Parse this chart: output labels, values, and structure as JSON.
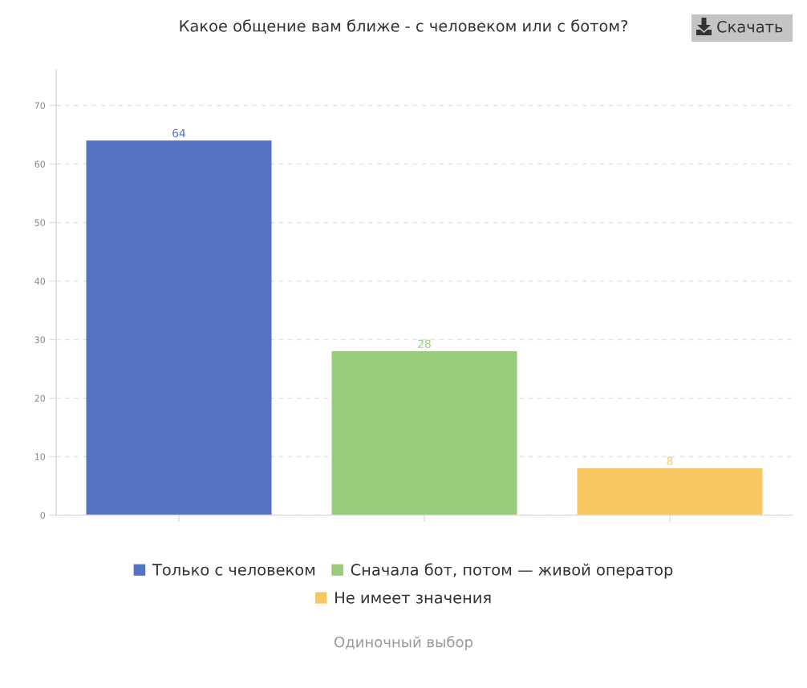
{
  "chart_data": {
    "type": "bar",
    "title": "Какое общение вам ближе - с человеком или с ботом?",
    "categories": [
      null,
      null,
      null
    ],
    "series": [
      {
        "name": "Только с человеком",
        "color": "#5573c3",
        "values": [
          64,
          null,
          null
        ]
      },
      {
        "name": "Сначала бот, потом — живой оператор",
        "color": "#97cc7a",
        "values": [
          null,
          28,
          null
        ]
      },
      {
        "name": "Не имеет значения",
        "color": "#f7c762",
        "values": [
          null,
          null,
          8
        ]
      }
    ],
    "stacked": true,
    "ylim": [
      0,
      76
    ],
    "yticks": [
      0,
      10,
      20,
      30,
      40,
      50,
      60,
      70
    ],
    "grid": "y",
    "legend": "bottom",
    "data_labels": true,
    "annotations": [
      "Одиночный выбор",
      "Скачать"
    ]
  }
}
